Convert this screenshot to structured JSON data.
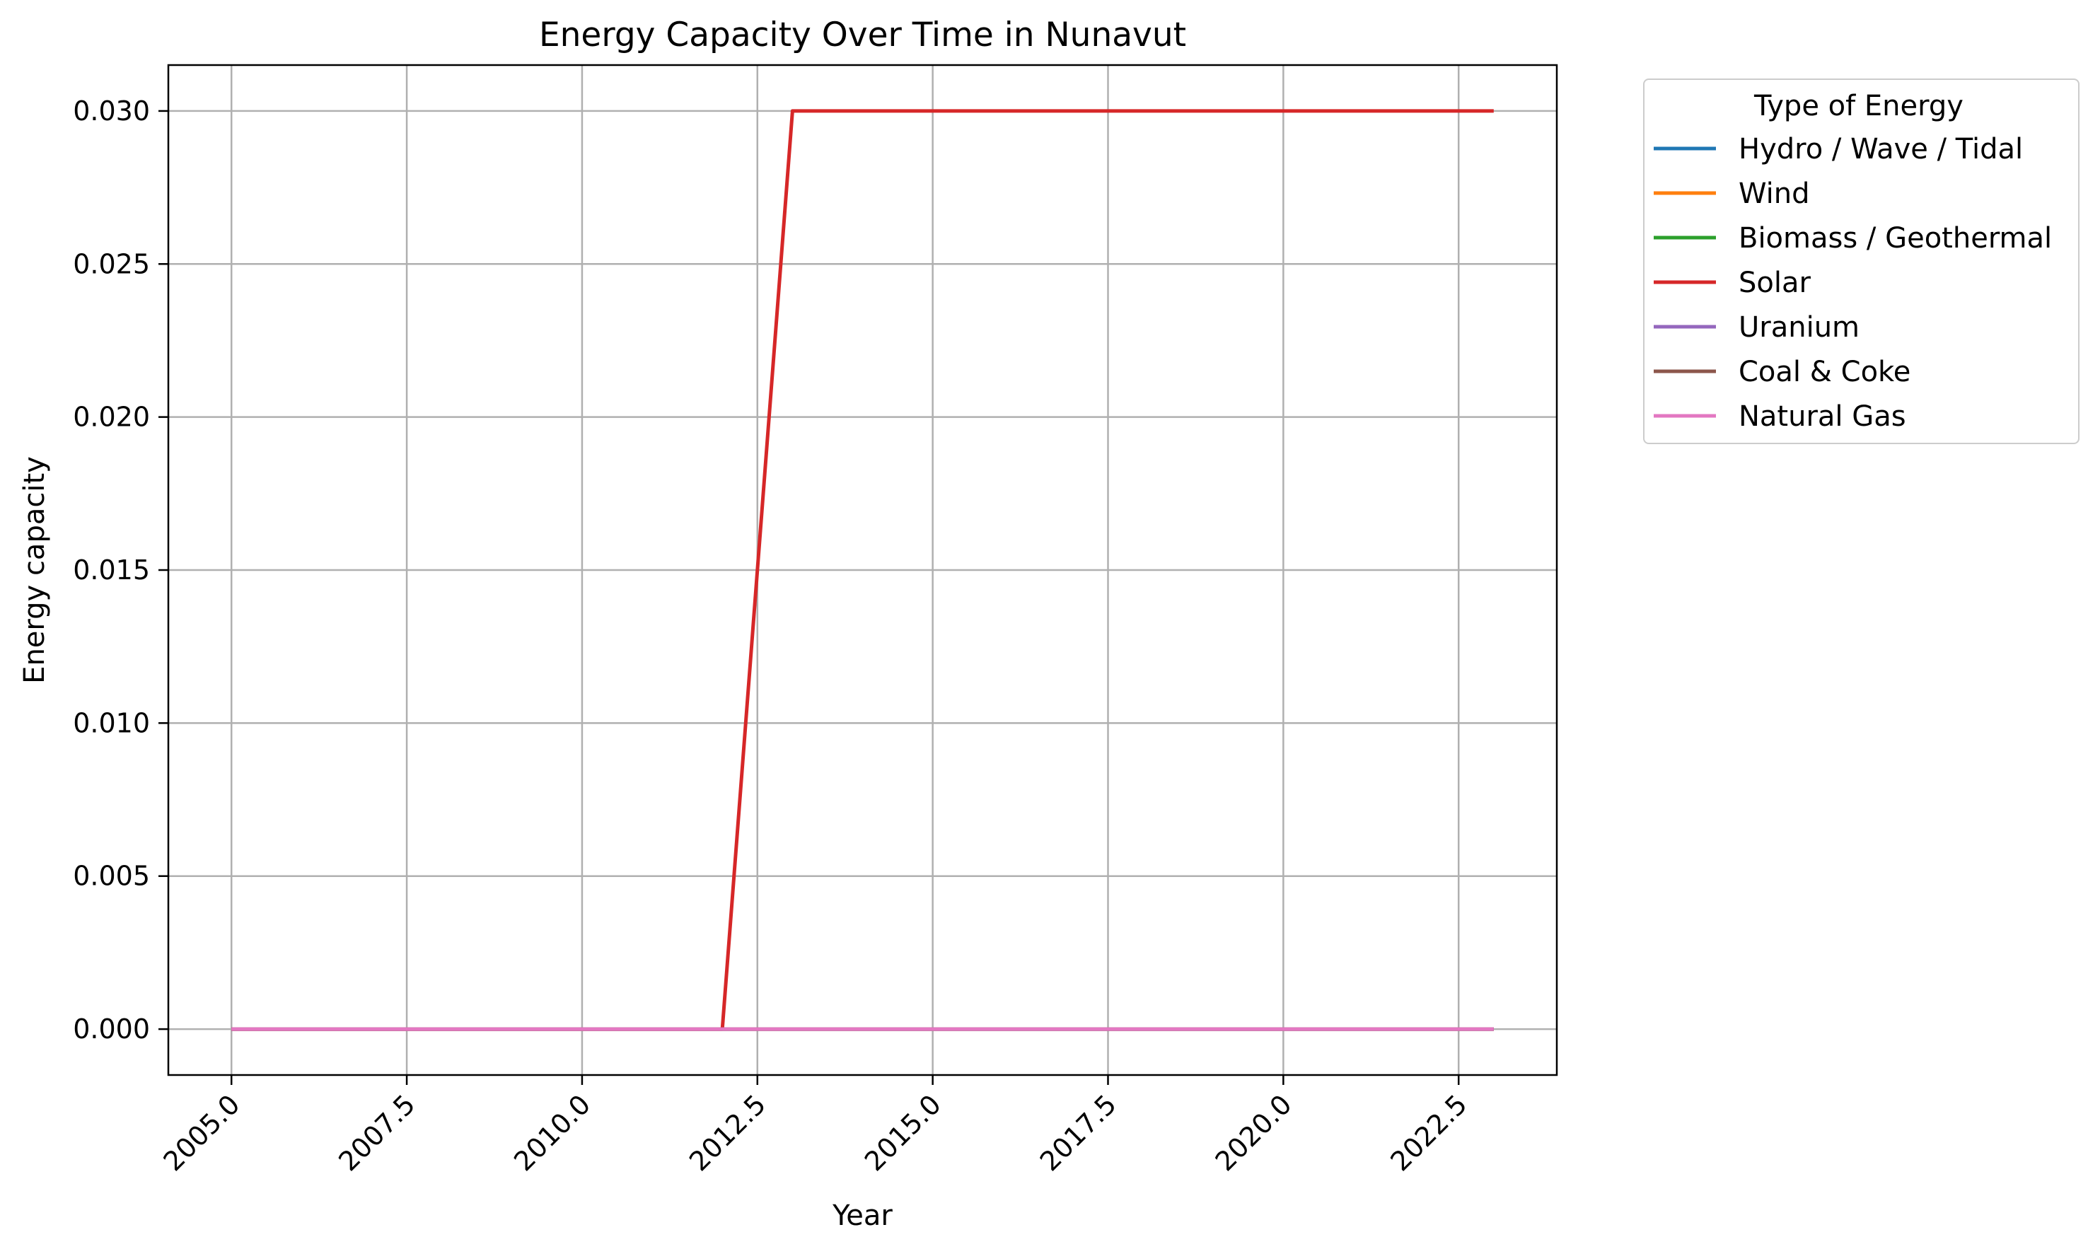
{
  "chart_data": {
    "type": "line",
    "title": "Energy Capacity Over Time in Nunavut",
    "xlabel": "Year",
    "ylabel": "Energy capacity",
    "xlim": [
      2004.1,
      2023.9
    ],
    "ylim": [
      -0.0015,
      0.0315
    ],
    "x_ticks": [
      2005.0,
      2007.5,
      2010.0,
      2012.5,
      2015.0,
      2017.5,
      2020.0,
      2022.5
    ],
    "x_tick_labels": [
      "2005.0",
      "2007.5",
      "2010.0",
      "2012.5",
      "2015.0",
      "2017.5",
      "2020.0",
      "2022.5"
    ],
    "y_ticks": [
      0.0,
      0.005,
      0.01,
      0.015,
      0.02,
      0.025,
      0.03
    ],
    "y_tick_labels": [
      "0.000",
      "0.005",
      "0.010",
      "0.015",
      "0.020",
      "0.025",
      "0.030"
    ],
    "grid": true,
    "legend": {
      "title": "Type of Energy",
      "placement": "outside-upper-right"
    },
    "x": [
      2005,
      2006,
      2007,
      2008,
      2009,
      2010,
      2011,
      2012,
      2013,
      2014,
      2015,
      2016,
      2017,
      2018,
      2019,
      2020,
      2021,
      2022,
      2023
    ],
    "series": [
      {
        "name": "Hydro / Wave / Tidal",
        "color": "#1f77b4",
        "values": [
          0,
          0,
          0,
          0,
          0,
          0,
          0,
          0,
          0,
          0,
          0,
          0,
          0,
          0,
          0,
          0,
          0,
          0,
          0
        ]
      },
      {
        "name": "Wind",
        "color": "#ff7f0e",
        "values": [
          0,
          0,
          0,
          0,
          0,
          0,
          0,
          0,
          0,
          0,
          0,
          0,
          0,
          0,
          0,
          0,
          0,
          0,
          0
        ]
      },
      {
        "name": "Biomass / Geothermal",
        "color": "#2ca02c",
        "values": [
          0,
          0,
          0,
          0,
          0,
          0,
          0,
          0,
          0,
          0,
          0,
          0,
          0,
          0,
          0,
          0,
          0,
          0,
          0
        ]
      },
      {
        "name": "Solar",
        "color": "#d62728",
        "values": [
          0,
          0,
          0,
          0,
          0,
          0,
          0,
          0,
          0.03,
          0.03,
          0.03,
          0.03,
          0.03,
          0.03,
          0.03,
          0.03,
          0.03,
          0.03,
          0.03
        ]
      },
      {
        "name": "Uranium",
        "color": "#9467bd",
        "values": [
          0,
          0,
          0,
          0,
          0,
          0,
          0,
          0,
          0,
          0,
          0,
          0,
          0,
          0,
          0,
          0,
          0,
          0,
          0
        ]
      },
      {
        "name": "Coal & Coke",
        "color": "#8c564b",
        "values": [
          0,
          0,
          0,
          0,
          0,
          0,
          0,
          0,
          0,
          0,
          0,
          0,
          0,
          0,
          0,
          0,
          0,
          0,
          0
        ]
      },
      {
        "name": "Natural Gas",
        "color": "#e377c2",
        "values": [
          0,
          0,
          0,
          0,
          0,
          0,
          0,
          0,
          0,
          0,
          0,
          0,
          0,
          0,
          0,
          0,
          0,
          0,
          0
        ]
      }
    ]
  }
}
